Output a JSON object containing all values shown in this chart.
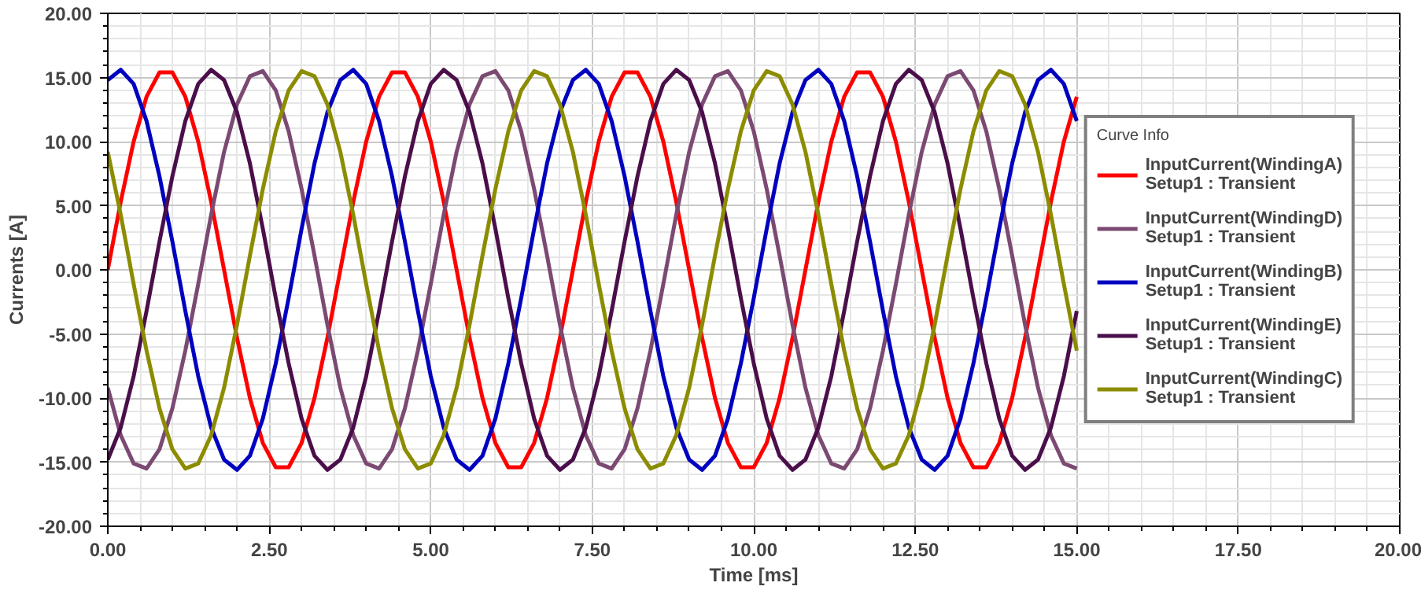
{
  "chart_data": {
    "type": "line",
    "xlabel": "Time [ms]",
    "ylabel": "Currents [A]",
    "legend_title": "Curve Info",
    "x": [
      0,
      0.2,
      0.4,
      0.6,
      0.8,
      1.0,
      1.2,
      1.4,
      1.6,
      1.8,
      2.0,
      2.2,
      2.4,
      2.6,
      2.8,
      3.0,
      3.2,
      3.4,
      3.6,
      3.8,
      4.0,
      4.2,
      4.4,
      4.6,
      4.8,
      5.0,
      5.2,
      5.4,
      5.6,
      5.8,
      6.0,
      6.2,
      6.4,
      6.6,
      6.8,
      7.0,
      7.2,
      7.4,
      7.6,
      7.8,
      8.0,
      8.2,
      8.4,
      8.6,
      8.8,
      9.0,
      9.2,
      9.4,
      9.6,
      9.8,
      10.0,
      10.2,
      10.4,
      10.6,
      10.8,
      11.0,
      11.2,
      11.4,
      11.6,
      11.8,
      12.0,
      12.2,
      12.4,
      12.6,
      12.8,
      13.0,
      13.2,
      13.4,
      13.6,
      13.8,
      14.0,
      14.2,
      14.4,
      14.6,
      14.8,
      15.0
    ],
    "series": [
      {
        "name": "InputCurrent(WindingA)\nSetup1 : Transient",
        "color": "#ff0000",
        "values": [
          0,
          5.3,
          10.0,
          13.5,
          15.4,
          15.4,
          13.5,
          10.0,
          5.3,
          0,
          -5.3,
          -10.0,
          -13.5,
          -15.4,
          -15.4,
          -13.5,
          -10.0,
          -5.3,
          0,
          5.3,
          10.0,
          13.5,
          15.4,
          15.4,
          13.5,
          10.0,
          5.3,
          0,
          -5.3,
          -10.0,
          -13.5,
          -15.4,
          -15.4,
          -13.5,
          -10.0,
          -5.3,
          0,
          5.3,
          10.0,
          13.5,
          15.4,
          15.4,
          13.5,
          10.0,
          5.3,
          0,
          -5.3,
          -10.0,
          -13.5,
          -15.4,
          -15.4,
          -13.5,
          -10.0,
          -5.3,
          0,
          5.3,
          10.0,
          13.5,
          15.4,
          15.4,
          13.5,
          10.0,
          5.3,
          0,
          -5.3,
          -10.0,
          -13.5,
          -15.4,
          -15.4,
          -13.5,
          -10.0,
          -5.3,
          0,
          5.3,
          10.0,
          13.5
        ]
      },
      {
        "name": "InputCurrent(WindingD)\nSetup1 : Transient",
        "color": "#7b4a72",
        "values": [
          -9.2,
          -12.9,
          -15.1,
          -15.5,
          -14.0,
          -10.8,
          -6.3,
          -1.1,
          4.3,
          9.2,
          12.9,
          15.1,
          15.5,
          14.0,
          10.8,
          6.3,
          1.1,
          -4.3,
          -9.2,
          -12.9,
          -15.1,
          -15.5,
          -14.0,
          -10.8,
          -6.3,
          -1.1,
          4.3,
          9.2,
          12.9,
          15.1,
          15.5,
          14.0,
          10.8,
          6.3,
          1.1,
          -4.3,
          -9.2,
          -12.9,
          -15.1,
          -15.5,
          -14.0,
          -10.8,
          -6.3,
          -1.1,
          4.3,
          9.2,
          12.9,
          15.1,
          15.5,
          14.0,
          10.8,
          6.3,
          1.1,
          -4.3,
          -9.2,
          -12.9,
          -15.1,
          -15.5,
          -14.0,
          -10.8,
          -6.3,
          -1.1,
          4.3,
          9.2,
          12.9,
          15.1,
          15.5,
          14.0,
          10.8,
          6.3,
          1.1,
          -4.3,
          -9.2,
          -12.9,
          -15.1,
          -15.5
        ]
      },
      {
        "name": "InputCurrent(WindingB)\nSetup1 : Transient",
        "color": "#0000c0",
        "values": [
          14.8,
          15.6,
          14.5,
          11.6,
          7.3,
          2.2,
          -3.2,
          -8.3,
          -12.3,
          -14.8,
          -15.6,
          -14.5,
          -11.6,
          -7.3,
          -2.2,
          3.2,
          8.3,
          12.3,
          14.8,
          15.6,
          14.5,
          11.6,
          7.3,
          2.2,
          -3.2,
          -8.3,
          -12.3,
          -14.8,
          -15.6,
          -14.5,
          -11.6,
          -7.3,
          -2.2,
          3.2,
          8.3,
          12.3,
          14.8,
          15.6,
          14.5,
          11.6,
          7.3,
          2.2,
          -3.2,
          -8.3,
          -12.3,
          -14.8,
          -15.6,
          -14.5,
          -11.6,
          -7.3,
          -2.2,
          3.2,
          8.3,
          12.3,
          14.8,
          15.6,
          14.5,
          11.6,
          7.3,
          2.2,
          -3.2,
          -8.3,
          -12.3,
          -14.8,
          -15.6,
          -14.5,
          -11.6,
          -7.3,
          -2.2,
          3.2,
          8.3,
          12.3,
          14.8,
          15.6,
          14.5,
          11.6
        ]
      },
      {
        "name": "InputCurrent(WindingE)\nSetup1 : Transient",
        "color": "#4a0f4a",
        "values": [
          -14.8,
          -12.3,
          -8.3,
          -3.2,
          2.2,
          7.3,
          11.6,
          14.5,
          15.6,
          14.8,
          12.3,
          8.3,
          3.2,
          -2.2,
          -7.3,
          -11.6,
          -14.5,
          -15.6,
          -14.8,
          -12.3,
          -8.3,
          -3.2,
          2.2,
          7.3,
          11.6,
          14.5,
          15.6,
          14.8,
          12.3,
          8.3,
          3.2,
          -2.2,
          -7.3,
          -11.6,
          -14.5,
          -15.6,
          -14.8,
          -12.3,
          -8.3,
          -3.2,
          2.2,
          7.3,
          11.6,
          14.5,
          15.6,
          14.8,
          12.3,
          8.3,
          3.2,
          -2.2,
          -7.3,
          -11.6,
          -14.5,
          -15.6,
          -14.8,
          -12.3,
          -8.3,
          -3.2,
          2.2,
          7.3,
          11.6,
          14.5,
          15.6,
          14.8,
          12.3,
          8.3,
          3.2,
          -2.2,
          -7.3,
          -11.6,
          -14.5,
          -15.6,
          -14.8,
          -12.3,
          -8.3,
          -3.2
        ]
      },
      {
        "name": "InputCurrent(WindingC)\nSetup1 : Transient",
        "color": "#8c8c00",
        "values": [
          9.2,
          4.3,
          -1.1,
          -6.3,
          -10.8,
          -14.0,
          -15.5,
          -15.1,
          -12.9,
          -9.2,
          -4.3,
          1.1,
          6.3,
          10.8,
          14.0,
          15.5,
          15.1,
          12.9,
          9.2,
          4.3,
          -1.1,
          -6.3,
          -10.8,
          -14.0,
          -15.5,
          -15.1,
          -12.9,
          -9.2,
          -4.3,
          1.1,
          6.3,
          10.8,
          14.0,
          15.5,
          15.1,
          12.9,
          9.2,
          4.3,
          -1.1,
          -6.3,
          -10.8,
          -14.0,
          -15.5,
          -15.1,
          -12.9,
          -9.2,
          -4.3,
          1.1,
          6.3,
          10.8,
          14.0,
          15.5,
          15.1,
          12.9,
          9.2,
          4.3,
          -1.1,
          -6.3,
          -10.8,
          -14.0,
          -15.5,
          -15.1,
          -12.9,
          -9.2,
          -4.3,
          1.1,
          6.3,
          10.8,
          14.0,
          15.5,
          15.1,
          12.9,
          9.2,
          4.3,
          -1.1,
          -6.3
        ]
      }
    ],
    "xlim": [
      0,
      20
    ],
    "ylim": [
      -20,
      20
    ],
    "xticks": [
      {
        "value": 0,
        "label": "0.00"
      },
      {
        "value": 2.5,
        "label": "2.50"
      },
      {
        "value": 5,
        "label": "5.00"
      },
      {
        "value": 7.5,
        "label": "7.50"
      },
      {
        "value": 10,
        "label": "10.00"
      },
      {
        "value": 12.5,
        "label": "12.50"
      },
      {
        "value": 15,
        "label": "15.00"
      },
      {
        "value": 17.5,
        "label": "17.50"
      },
      {
        "value": 20,
        "label": "20.00"
      }
    ],
    "yticks": [
      {
        "value": -20,
        "label": "-20.00"
      },
      {
        "value": -15,
        "label": "-15.00"
      },
      {
        "value": -10,
        "label": "-10.00"
      },
      {
        "value": -5,
        "label": "-5.00"
      },
      {
        "value": 0,
        "label": "0.00"
      },
      {
        "value": 5,
        "label": "5.00"
      },
      {
        "value": 10,
        "label": "10.00"
      },
      {
        "value": 15,
        "label": "15.00"
      },
      {
        "value": 20,
        "label": "20.00"
      }
    ],
    "grid": true,
    "legend": "right",
    "line_style": "solid",
    "marker": "none"
  }
}
